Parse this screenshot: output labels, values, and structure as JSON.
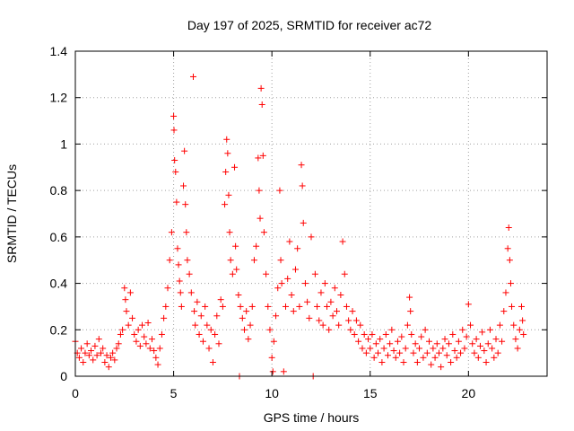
{
  "chart_data": {
    "type": "scatter",
    "title": "Day 197 of 2025, SRMTID for receiver ac72",
    "xlabel": "GPS time / hours",
    "ylabel": "SRMTID / TECUs",
    "xlim": [
      0,
      24
    ],
    "ylim": [
      0,
      1.4
    ],
    "xticks": [
      0,
      5,
      10,
      15,
      20
    ],
    "xtick_labels": [
      "0",
      "5",
      "10",
      "15",
      "20"
    ],
    "yticks": [
      0,
      0.2,
      0.4,
      0.6,
      0.8,
      1.0,
      1.2,
      1.4
    ],
    "ytick_labels": [
      "0",
      "0.2",
      "0.4",
      "0.6",
      "0.8",
      "1",
      "1.2",
      "1.4"
    ],
    "grid": true,
    "marker": "+",
    "color": "#ff0000",
    "series": [
      {
        "name": "SRMTID",
        "points": [
          [
            0.0,
            0.15
          ],
          [
            0.1,
            0.1
          ],
          [
            0.2,
            0.08
          ],
          [
            0.3,
            0.12
          ],
          [
            0.4,
            0.06
          ],
          [
            0.5,
            0.1
          ],
          [
            0.6,
            0.14
          ],
          [
            0.7,
            0.09
          ],
          [
            0.8,
            0.11
          ],
          [
            0.9,
            0.07
          ],
          [
            1.0,
            0.13
          ],
          [
            1.1,
            0.09
          ],
          [
            1.2,
            0.16
          ],
          [
            1.3,
            0.1
          ],
          [
            1.4,
            0.12
          ],
          [
            1.5,
            0.06
          ],
          [
            1.6,
            0.09
          ],
          [
            1.7,
            0.04
          ],
          [
            1.8,
            0.08
          ],
          [
            1.9,
            0.1
          ],
          [
            2.0,
            0.07
          ],
          [
            2.1,
            0.12
          ],
          [
            2.2,
            0.14
          ],
          [
            2.3,
            0.18
          ],
          [
            2.4,
            0.2
          ],
          [
            2.5,
            0.38
          ],
          [
            2.55,
            0.33
          ],
          [
            2.6,
            0.28
          ],
          [
            2.7,
            0.22
          ],
          [
            2.8,
            0.36
          ],
          [
            2.9,
            0.25
          ],
          [
            3.0,
            0.18
          ],
          [
            3.1,
            0.15
          ],
          [
            3.2,
            0.2
          ],
          [
            3.3,
            0.13
          ],
          [
            3.4,
            0.22
          ],
          [
            3.5,
            0.17
          ],
          [
            3.6,
            0.14
          ],
          [
            3.7,
            0.23
          ],
          [
            3.8,
            0.12
          ],
          [
            3.9,
            0.16
          ],
          [
            4.0,
            0.11
          ],
          [
            4.1,
            0.08
          ],
          [
            4.2,
            0.05
          ],
          [
            4.3,
            0.12
          ],
          [
            4.4,
            0.18
          ],
          [
            4.5,
            0.25
          ],
          [
            4.6,
            0.3
          ],
          [
            4.7,
            0.38
          ],
          [
            4.8,
            0.5
          ],
          [
            4.9,
            0.62
          ],
          [
            5.0,
            1.12
          ],
          [
            5.02,
            1.06
          ],
          [
            5.05,
            0.93
          ],
          [
            5.1,
            0.88
          ],
          [
            5.15,
            0.75
          ],
          [
            5.2,
            0.55
          ],
          [
            5.25,
            0.48
          ],
          [
            5.3,
            0.41
          ],
          [
            5.35,
            0.36
          ],
          [
            5.4,
            0.3
          ],
          [
            5.5,
            0.82
          ],
          [
            5.55,
            0.97
          ],
          [
            5.6,
            0.74
          ],
          [
            5.65,
            0.62
          ],
          [
            5.7,
            0.5
          ],
          [
            5.8,
            0.44
          ],
          [
            5.9,
            0.36
          ],
          [
            6.0,
            1.29
          ],
          [
            6.05,
            0.28
          ],
          [
            6.1,
            0.22
          ],
          [
            6.2,
            0.32
          ],
          [
            6.3,
            0.18
          ],
          [
            6.4,
            0.26
          ],
          [
            6.5,
            0.15
          ],
          [
            6.6,
            0.3
          ],
          [
            6.7,
            0.22
          ],
          [
            6.8,
            0.12
          ],
          [
            6.9,
            0.2
          ],
          [
            7.0,
            0.06
          ],
          [
            7.1,
            0.18
          ],
          [
            7.2,
            0.26
          ],
          [
            7.3,
            0.14
          ],
          [
            7.4,
            0.33
          ],
          [
            7.5,
            0.3
          ],
          [
            7.6,
            0.74
          ],
          [
            7.65,
            0.88
          ],
          [
            7.7,
            1.02
          ],
          [
            7.75,
            0.96
          ],
          [
            7.8,
            0.78
          ],
          [
            7.85,
            0.62
          ],
          [
            7.9,
            0.5
          ],
          [
            8.0,
            0.44
          ],
          [
            8.1,
            0.9
          ],
          [
            8.15,
            0.56
          ],
          [
            8.2,
            0.46
          ],
          [
            8.3,
            0.35
          ],
          [
            8.35,
            0.0
          ],
          [
            8.4,
            0.3
          ],
          [
            8.5,
            0.25
          ],
          [
            8.6,
            0.2
          ],
          [
            8.7,
            0.28
          ],
          [
            8.8,
            0.16
          ],
          [
            8.9,
            0.22
          ],
          [
            9.0,
            0.3
          ],
          [
            9.1,
            0.5
          ],
          [
            9.2,
            0.56
          ],
          [
            9.3,
            0.94
          ],
          [
            9.35,
            0.8
          ],
          [
            9.4,
            0.68
          ],
          [
            9.45,
            1.24
          ],
          [
            9.5,
            1.17
          ],
          [
            9.55,
            0.95
          ],
          [
            9.6,
            0.62
          ],
          [
            9.7,
            0.44
          ],
          [
            9.8,
            0.3
          ],
          [
            9.9,
            0.2
          ],
          [
            10.0,
            0.08
          ],
          [
            10.05,
            0.02
          ],
          [
            10.1,
            0.15
          ],
          [
            10.2,
            0.26
          ],
          [
            10.3,
            0.38
          ],
          [
            10.4,
            0.8
          ],
          [
            10.45,
            0.5
          ],
          [
            10.5,
            0.4
          ],
          [
            10.6,
            0.02
          ],
          [
            10.7,
            0.3
          ],
          [
            10.8,
            0.42
          ],
          [
            10.9,
            0.58
          ],
          [
            11.0,
            0.35
          ],
          [
            11.1,
            0.28
          ],
          [
            11.2,
            0.46
          ],
          [
            11.3,
            0.55
          ],
          [
            11.4,
            0.3
          ],
          [
            11.5,
            0.91
          ],
          [
            11.55,
            0.82
          ],
          [
            11.6,
            0.66
          ],
          [
            11.7,
            0.4
          ],
          [
            11.8,
            0.32
          ],
          [
            11.9,
            0.25
          ],
          [
            12.0,
            0.6
          ],
          [
            12.1,
            0.0
          ],
          [
            12.2,
            0.44
          ],
          [
            12.3,
            0.3
          ],
          [
            12.4,
            0.24
          ],
          [
            12.5,
            0.36
          ],
          [
            12.6,
            0.22
          ],
          [
            12.7,
            0.4
          ],
          [
            12.8,
            0.3
          ],
          [
            12.9,
            0.2
          ],
          [
            13.0,
            0.32
          ],
          [
            13.1,
            0.26
          ],
          [
            13.2,
            0.38
          ],
          [
            13.3,
            0.28
          ],
          [
            13.4,
            0.22
          ],
          [
            13.5,
            0.35
          ],
          [
            13.6,
            0.58
          ],
          [
            13.7,
            0.44
          ],
          [
            13.8,
            0.3
          ],
          [
            13.9,
            0.24
          ],
          [
            14.0,
            0.2
          ],
          [
            14.1,
            0.28
          ],
          [
            14.2,
            0.18
          ],
          [
            14.3,
            0.24
          ],
          [
            14.4,
            0.15
          ],
          [
            14.5,
            0.22
          ],
          [
            14.6,
            0.12
          ],
          [
            14.7,
            0.18
          ],
          [
            14.8,
            0.1
          ],
          [
            14.9,
            0.16
          ],
          [
            15.0,
            0.12
          ],
          [
            15.1,
            0.18
          ],
          [
            15.2,
            0.08
          ],
          [
            15.3,
            0.14
          ],
          [
            15.4,
            0.1
          ],
          [
            15.5,
            0.16
          ],
          [
            15.6,
            0.06
          ],
          [
            15.7,
            0.12
          ],
          [
            15.8,
            0.18
          ],
          [
            15.9,
            0.09
          ],
          [
            16.0,
            0.14
          ],
          [
            16.1,
            0.2
          ],
          [
            16.2,
            0.11
          ],
          [
            16.3,
            0.08
          ],
          [
            16.4,
            0.15
          ],
          [
            16.5,
            0.1
          ],
          [
            16.6,
            0.17
          ],
          [
            16.7,
            0.06
          ],
          [
            16.8,
            0.12
          ],
          [
            16.9,
            0.22
          ],
          [
            17.0,
            0.34
          ],
          [
            17.05,
            0.28
          ],
          [
            17.1,
            0.18
          ],
          [
            17.2,
            0.1
          ],
          [
            17.3,
            0.14
          ],
          [
            17.4,
            0.06
          ],
          [
            17.5,
            0.12
          ],
          [
            17.6,
            0.17
          ],
          [
            17.7,
            0.08
          ],
          [
            17.8,
            0.2
          ],
          [
            17.9,
            0.1
          ],
          [
            18.0,
            0.15
          ],
          [
            18.1,
            0.05
          ],
          [
            18.2,
            0.12
          ],
          [
            18.3,
            0.08
          ],
          [
            18.4,
            0.14
          ],
          [
            18.5,
            0.1
          ],
          [
            18.6,
            0.04
          ],
          [
            18.7,
            0.12
          ],
          [
            18.8,
            0.16
          ],
          [
            18.9,
            0.09
          ],
          [
            19.0,
            0.14
          ],
          [
            19.1,
            0.06
          ],
          [
            19.2,
            0.18
          ],
          [
            19.3,
            0.11
          ],
          [
            19.4,
            0.08
          ],
          [
            19.5,
            0.15
          ],
          [
            19.6,
            0.1
          ],
          [
            19.7,
            0.2
          ],
          [
            19.8,
            0.12
          ],
          [
            19.9,
            0.17
          ],
          [
            20.0,
            0.31
          ],
          [
            20.1,
            0.22
          ],
          [
            20.2,
            0.14
          ],
          [
            20.3,
            0.1
          ],
          [
            20.4,
            0.16
          ],
          [
            20.5,
            0.08
          ],
          [
            20.6,
            0.13
          ],
          [
            20.7,
            0.19
          ],
          [
            20.8,
            0.11
          ],
          [
            20.9,
            0.06
          ],
          [
            21.0,
            0.14
          ],
          [
            21.1,
            0.2
          ],
          [
            21.2,
            0.12
          ],
          [
            21.3,
            0.08
          ],
          [
            21.4,
            0.16
          ],
          [
            21.5,
            0.1
          ],
          [
            21.6,
            0.22
          ],
          [
            21.7,
            0.15
          ],
          [
            21.8,
            0.28
          ],
          [
            21.9,
            0.36
          ],
          [
            22.0,
            0.55
          ],
          [
            22.05,
            0.64
          ],
          [
            22.1,
            0.5
          ],
          [
            22.15,
            0.4
          ],
          [
            22.2,
            0.3
          ],
          [
            22.3,
            0.22
          ],
          [
            22.4,
            0.16
          ],
          [
            22.5,
            0.12
          ],
          [
            22.6,
            0.2
          ],
          [
            22.7,
            0.3
          ],
          [
            22.75,
            0.24
          ],
          [
            22.8,
            0.18
          ]
        ]
      }
    ]
  }
}
